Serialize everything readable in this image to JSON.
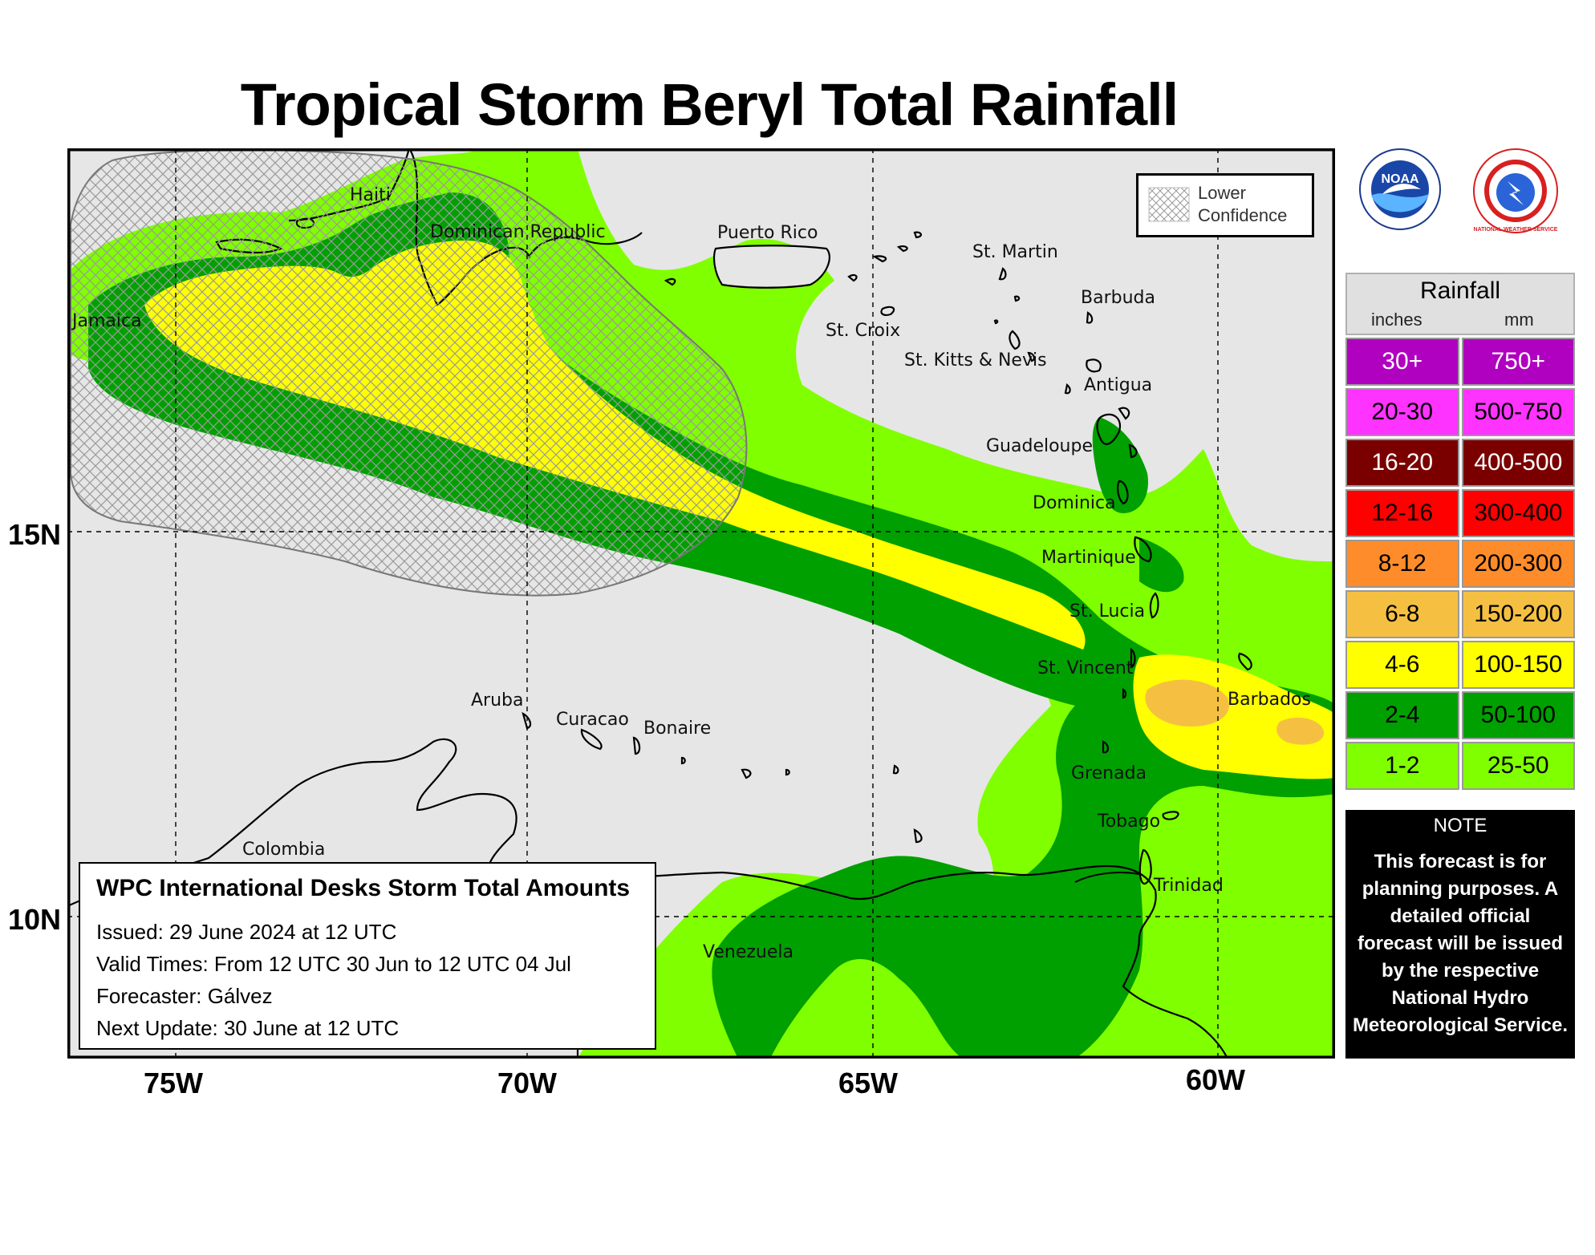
{
  "title": "Tropical Storm Beryl Total Rainfall",
  "axes": {
    "lon_labels": [
      "75W",
      "70W",
      "65W",
      "60W"
    ],
    "lat_labels": [
      "15N",
      "10N"
    ]
  },
  "places": {
    "haiti": "Haiti",
    "dominican_republic": "Dominican Republic",
    "puerto_rico": "Puerto Rico",
    "st_martin": "St. Martin",
    "barbuda": "Barbuda",
    "jamaica": "Jamaica",
    "st_croix": "St. Croix",
    "st_kitts": "St. Kitts & Nevis",
    "antigua": "Antigua",
    "guadeloupe": "Guadeloupe",
    "dominica": "Dominica",
    "martinique": "Martinique",
    "st_lucia": "St. Lucia",
    "st_vincent": "St. Vincent",
    "barbados": "Barbados",
    "aruba": "Aruba",
    "curacao": "Curacao",
    "bonaire": "Bonaire",
    "grenada": "Grenada",
    "tobago": "Tobago",
    "trinidad": "Trinidad",
    "colombia": "Colombia",
    "venezuela": "Venezuela"
  },
  "confidence_legend": {
    "line1": "Lower",
    "line2": "Confidence"
  },
  "logos": {
    "noaa_label": "NOAA",
    "nws_label": "NATIONAL WEATHER SERVICE"
  },
  "rainfall_legend": {
    "title": "Rainfall",
    "unit_in": "inches",
    "unit_mm": "mm",
    "rows": [
      {
        "inches": "30+",
        "mm": "750+",
        "color": "#b000c0",
        "text_color": "#ffffff"
      },
      {
        "inches": "20-30",
        "mm": "500-750",
        "color": "#ff33ff",
        "text_color": "#000000"
      },
      {
        "inches": "16-20",
        "mm": "400-500",
        "color": "#7a0000",
        "text_color": "#ffffff"
      },
      {
        "inches": "12-16",
        "mm": "300-400",
        "color": "#ff0000",
        "text_color": "#000000"
      },
      {
        "inches": "8-12",
        "mm": "200-300",
        "color": "#ff8c2a",
        "text_color": "#000000"
      },
      {
        "inches": "6-8",
        "mm": "150-200",
        "color": "#f5c042",
        "text_color": "#000000"
      },
      {
        "inches": "4-6",
        "mm": "100-150",
        "color": "#ffff00",
        "text_color": "#000000"
      },
      {
        "inches": "2-4",
        "mm": "50-100",
        "color": "#00a000",
        "text_color": "#000000"
      },
      {
        "inches": "1-2",
        "mm": "25-50",
        "color": "#80ff00",
        "text_color": "#000000"
      }
    ]
  },
  "note": {
    "title": "NOTE",
    "body": "This forecast is for planning purposes. A detailed official forecast will be issued by the respective National Hydro Meteorological Service."
  },
  "info_box": {
    "title": "WPC International Desks Storm Total Amounts",
    "issued": "Issued:  29 June 2024 at 12 UTC",
    "valid": "Valid Times:  From 12 UTC 30 Jun to 12 UTC 04 Jul",
    "forecaster": "Forecaster: Gálvez",
    "next_update": "Next Update: 30 June at 12 UTC"
  }
}
